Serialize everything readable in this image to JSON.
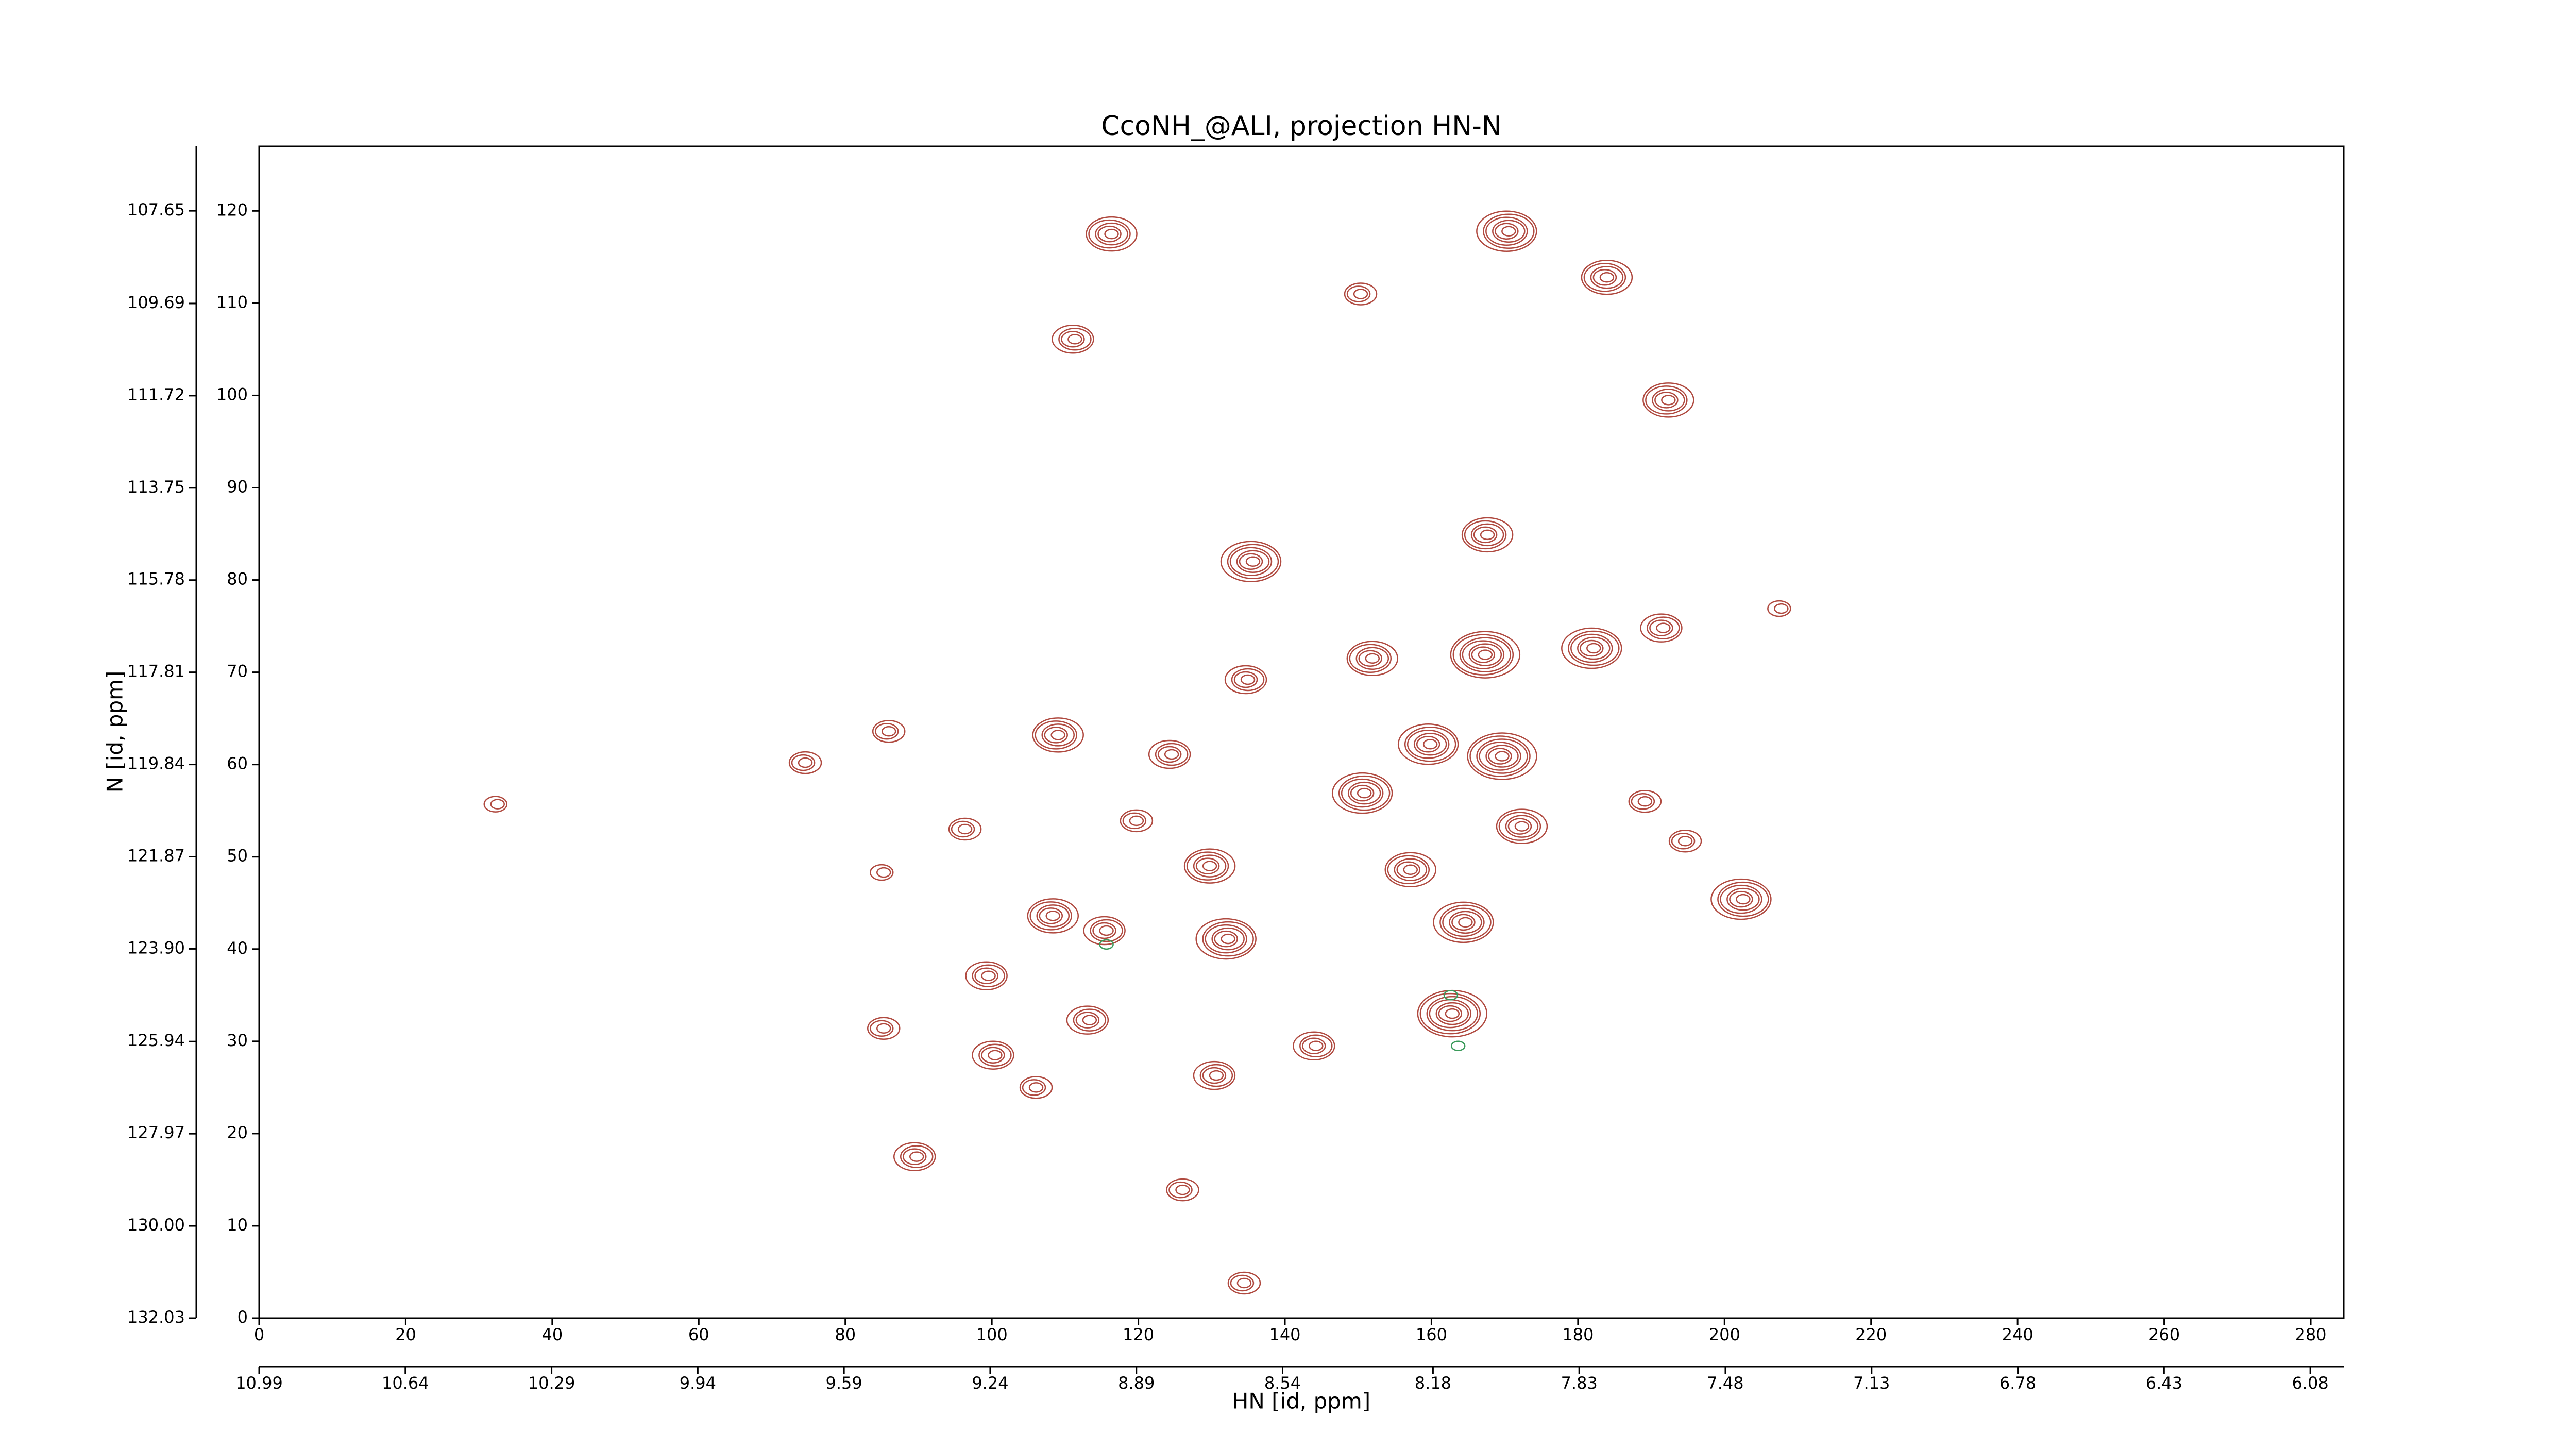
{
  "chart_data": {
    "type": "contour",
    "title": "CcoNH_@ALI, projection HN-N",
    "xlabel": "HN [id, ppm]",
    "ylabel": "N [id, ppm]",
    "xlim": [
      0,
      284.5
    ],
    "ylim": [
      0,
      127
    ],
    "xticks": [
      0,
      20,
      40,
      60,
      80,
      100,
      120,
      140,
      160,
      180,
      200,
      220,
      240,
      260,
      280
    ],
    "yticks": [
      0,
      10,
      20,
      30,
      40,
      50,
      60,
      70,
      80,
      90,
      100,
      110,
      120
    ],
    "x2lim": [
      10.99,
      6.0
    ],
    "x2ticks": [
      10.99,
      10.64,
      10.29,
      9.94,
      9.59,
      9.24,
      8.89,
      8.54,
      8.18,
      7.83,
      7.48,
      7.13,
      6.78,
      6.43,
      6.08
    ],
    "y2lim": [
      132.03,
      106.23
    ],
    "y2ticks": [
      132.03,
      {
        "value": 130,
        "label": "130.00"
      },
      127.97,
      125.94,
      {
        "value": 123.9,
        "label": "123.90"
      },
      121.87,
      119.84,
      117.81,
      115.78,
      113.75,
      111.72,
      109.69,
      107.65
    ],
    "series": [
      {
        "color": "#b04a40",
        "x": [
          116.2,
          111.2,
          170.4,
          183.8,
          192.2,
          167.5,
          135.5,
          134.8,
          151.8,
          167.2,
          182,
          191.5,
          108.9,
          124.4,
          159.7,
          169.5,
          150.7,
          74.4,
          32.4,
          85.8,
          96.2,
          119.6,
          172.2,
          189,
          194.5,
          129.6,
          157,
          85.1,
          164.5,
          132.1,
          202.4,
          108.2,
          115.5,
          99.4,
          162.7,
          113.2,
          85.1,
          100.3,
          144.1,
          130.5,
          105.9,
          89.6,
          125.9,
          134.3,
          150.2,
          207.6
        ],
        "y": [
          117.5,
          106.1,
          117.8,
          112.8,
          99.5,
          84.9,
          82,
          69.2,
          71.5,
          71.9,
          72.6,
          74.8,
          63.2,
          61.1,
          62.2,
          60.9,
          56.9,
          60.2,
          55.7,
          63.6,
          53,
          53.9,
          53.3,
          56,
          51.7,
          49,
          48.6,
          48.3,
          42.9,
          41.1,
          45.4,
          43.6,
          42,
          37.1,
          33,
          32.3,
          31.4,
          28.5,
          29.5,
          26.3,
          25,
          17.5,
          13.9,
          3.8,
          111,
          76.9
        ],
        "levels": [
          5,
          4,
          6,
          5,
          5,
          5,
          6,
          4,
          5,
          7,
          6,
          4,
          5,
          4,
          6,
          7,
          6,
          3,
          2,
          3,
          3,
          3,
          5,
          3,
          3,
          5,
          5,
          2,
          6,
          6,
          6,
          5,
          4,
          4,
          7,
          4,
          3,
          4,
          4,
          4,
          3,
          4,
          3,
          3,
          3,
          2
        ]
      },
      {
        "color": "#3a9a5a",
        "x": [
          115.5,
          162.5,
          163.5
        ],
        "y": [
          40.5,
          35,
          29.5
        ],
        "levels": [
          1,
          1,
          1
        ]
      }
    ]
  }
}
